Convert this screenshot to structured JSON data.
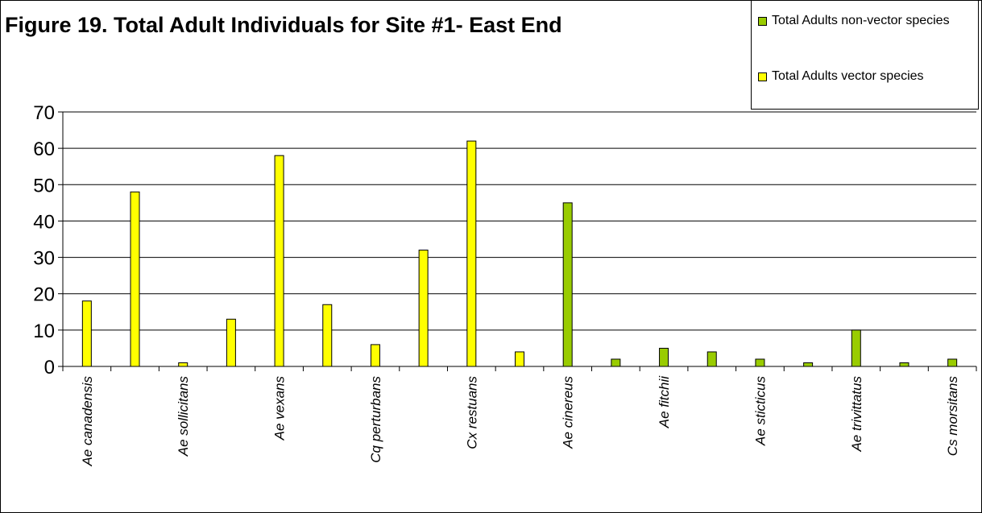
{
  "chart_data": {
    "type": "bar",
    "title": "Figure 19. Total Adult Individuals for Site #1- East End",
    "xlabel": "",
    "ylabel": "",
    "ylim": [
      0,
      70
    ],
    "yticks": [
      0,
      10,
      20,
      30,
      40,
      50,
      60,
      70
    ],
    "grid": true,
    "legend_position": "top-right",
    "categories": [
      "Ae canadensis",
      "",
      "Ae sollicitans",
      "",
      "Ae vexans",
      "",
      "Cq perturbans",
      "",
      "Cx restuans",
      "",
      "Ae cinereus",
      "",
      "Ae fitchii",
      "",
      "Ae sticticus",
      "",
      "Ae trivittatus",
      "",
      "Cs morsitans"
    ],
    "series": [
      {
        "name": "Total Adults non-vector species",
        "color": "#99cc00",
        "values": [
          null,
          null,
          null,
          null,
          null,
          null,
          null,
          null,
          null,
          null,
          45,
          2,
          5,
          4,
          2,
          1,
          10,
          1,
          2
        ]
      },
      {
        "name": "Total Adults vector species",
        "color": "#ffff00",
        "values": [
          18,
          48,
          1,
          13,
          58,
          17,
          6,
          32,
          62,
          4,
          null,
          null,
          null,
          null,
          null,
          null,
          null,
          null,
          null
        ]
      }
    ]
  }
}
